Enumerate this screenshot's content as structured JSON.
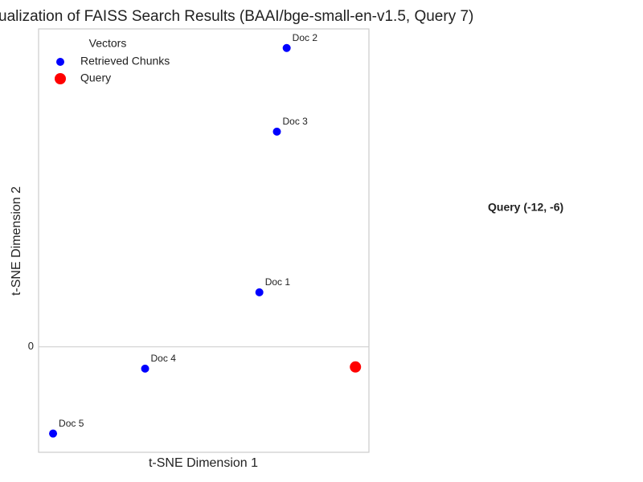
{
  "chart_data": {
    "type": "scatter",
    "title": "ualization of FAISS Search Results (BAAI/bge-small-en-v1.5, Query 7)",
    "x_label": "t-SNE Dimension 1",
    "y_label": "t-SNE Dimension 2",
    "legend_title": "Vectors",
    "legend": "upper left",
    "annotation": "Query (-12, -6)",
    "xlim": [
      -106,
      -8
    ],
    "ylim": [
      -31.5,
      95
    ],
    "yticks": [
      0
    ],
    "grid": true,
    "series": [
      {
        "name": "Retrieved Chunks",
        "color": "#0000ff",
        "size": 5,
        "x": [
          -40.5,
          -32.4,
          -35.3,
          -74.4,
          -101.7
        ],
        "values": [
          16.3,
          89.3,
          64.3,
          -6.5,
          -25.9
        ],
        "labels": [
          "Doc 1",
          "Doc 2",
          "Doc 3",
          "Doc 4",
          "Doc 5"
        ]
      },
      {
        "name": "Query",
        "color": "#ff0000",
        "size": 7,
        "x": [
          -12
        ],
        "values": [
          -6
        ]
      }
    ]
  }
}
